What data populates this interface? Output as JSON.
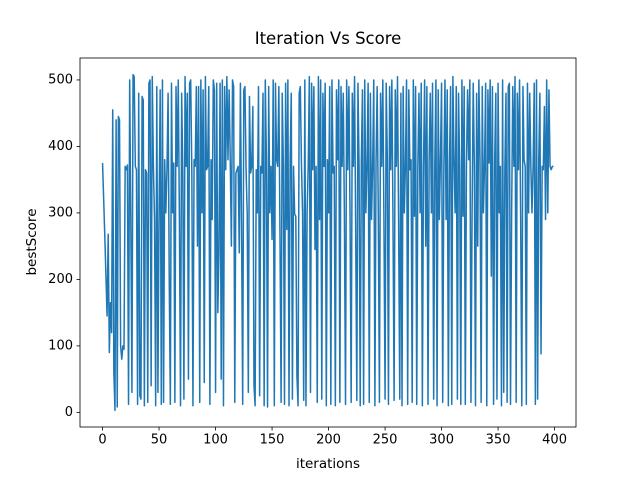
{
  "chart_data": {
    "type": "line",
    "title": "Iteration Vs Score",
    "x_label": "iterations",
    "y_label": "bestScore",
    "color": "#1f77b4",
    "xlim": [
      -19.95,
      418.95
    ],
    "xticks": [
      0,
      50,
      100,
      150,
      200,
      250,
      300,
      350,
      400
    ],
    "ylim": [
      -22,
      533
    ],
    "yticks": [
      0,
      100,
      200,
      300,
      400,
      500
    ],
    "values": [
      375,
      320,
      265,
      205,
      145,
      268,
      90,
      165,
      120,
      455,
      60,
      3,
      440,
      8,
      445,
      440,
      100,
      80,
      100,
      95,
      370,
      365,
      372,
      12,
      500,
      290,
      30,
      508,
      505,
      370,
      365,
      12,
      480,
      25,
      20,
      475,
      470,
      10,
      365,
      360,
      15,
      495,
      500,
      40,
      505,
      370,
      290,
      10,
      490,
      30,
      300,
      485,
      12,
      500,
      15,
      380,
      300,
      365,
      480,
      205,
      12,
      495,
      300,
      375,
      15,
      490,
      370,
      500,
      295,
      10,
      480,
      365,
      20,
      505,
      370,
      480,
      50,
      495,
      500,
      365,
      10,
      380,
      370,
      490,
      250,
      490,
      15,
      500,
      300,
      485,
      45,
      505,
      365,
      370,
      490,
      12,
      380,
      290,
      500,
      485,
      30,
      495,
      150,
      240,
      495,
      50,
      500,
      10,
      490,
      365,
      505,
      380,
      485,
      380,
      250,
      500,
      490,
      15,
      360,
      365,
      370,
      240,
      495,
      280,
      12,
      485,
      490,
      365,
      300,
      30,
      475,
      360,
      370,
      460,
      40,
      10,
      365,
      300,
      490,
      25,
      370,
      360,
      480,
      10,
      500,
      380,
      8,
      490,
      300,
      370,
      260,
      500,
      10,
      495,
      380,
      370,
      490,
      270,
      15,
      480,
      370,
      12,
      495,
      275,
      500,
      10,
      380,
      480,
      20,
      370,
      298,
      295,
      55,
      10,
      480,
      490,
      375,
      300,
      18,
      500,
      10,
      300,
      370,
      505,
      30,
      495,
      365,
      490,
      245,
      370,
      15,
      505,
      290,
      500,
      20,
      480,
      370,
      495,
      10,
      380,
      300,
      490,
      12,
      500,
      360,
      370,
      10,
      485,
      380,
      500,
      15,
      490,
      370,
      480,
      295,
      12,
      500,
      365,
      490,
      295,
      15,
      480,
      370,
      505,
      270,
      18,
      495,
      370,
      10,
      380,
      485,
      12,
      500,
      300,
      370,
      495,
      15,
      480,
      290,
      370,
      500,
      10,
      375,
      490,
      300,
      15,
      480,
      370,
      500,
      285,
      20,
      495,
      380,
      12,
      490,
      365,
      500,
      290,
      18,
      485,
      370,
      505,
      280,
      20,
      480,
      10,
      490,
      300,
      370,
      500,
      12,
      485,
      365,
      380,
      15,
      500,
      295,
      490,
      12,
      370,
      480,
      300,
      495,
      10,
      370,
      500,
      250,
      490,
      12,
      380,
      480,
      300,
      495,
      20,
      370,
      500,
      10,
      485,
      290,
      380,
      495,
      15,
      365,
      500,
      290,
      485,
      10,
      375,
      490,
      12,
      505,
      380,
      300,
      490,
      20,
      480,
      370,
      12,
      500,
      295,
      490,
      12,
      370,
      485,
      380,
      500,
      15,
      300,
      495,
      370,
      10,
      480,
      250,
      500,
      380,
      15,
      490,
      300,
      370,
      495,
      10,
      485,
      375,
      500,
      205,
      490,
      12,
      380,
      480,
      20,
      495,
      300,
      370,
      10,
      500,
      30,
      365,
      480,
      15,
      490,
      495,
      12,
      300,
      490,
      370,
      505,
      15,
      480,
      365,
      500,
      285,
      10,
      490,
      380,
      370,
      12,
      495,
      300,
      480,
      370,
      300,
      370,
      495,
      12,
      500,
      20,
      380,
      480,
      88,
      370,
      365,
      460,
      290,
      500,
      300,
      485,
      370,
      365,
      370,
      370
    ]
  }
}
